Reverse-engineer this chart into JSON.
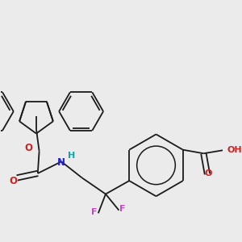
{
  "background_color": "#ebebeb",
  "figsize": [
    3.0,
    3.0
  ],
  "dpi": 100,
  "colors": {
    "black": "#1a1a1a",
    "F": "#cc44cc",
    "N": "#2222cc",
    "H": "#00aaaa",
    "O": "#cc2222"
  },
  "lw": 1.3
}
